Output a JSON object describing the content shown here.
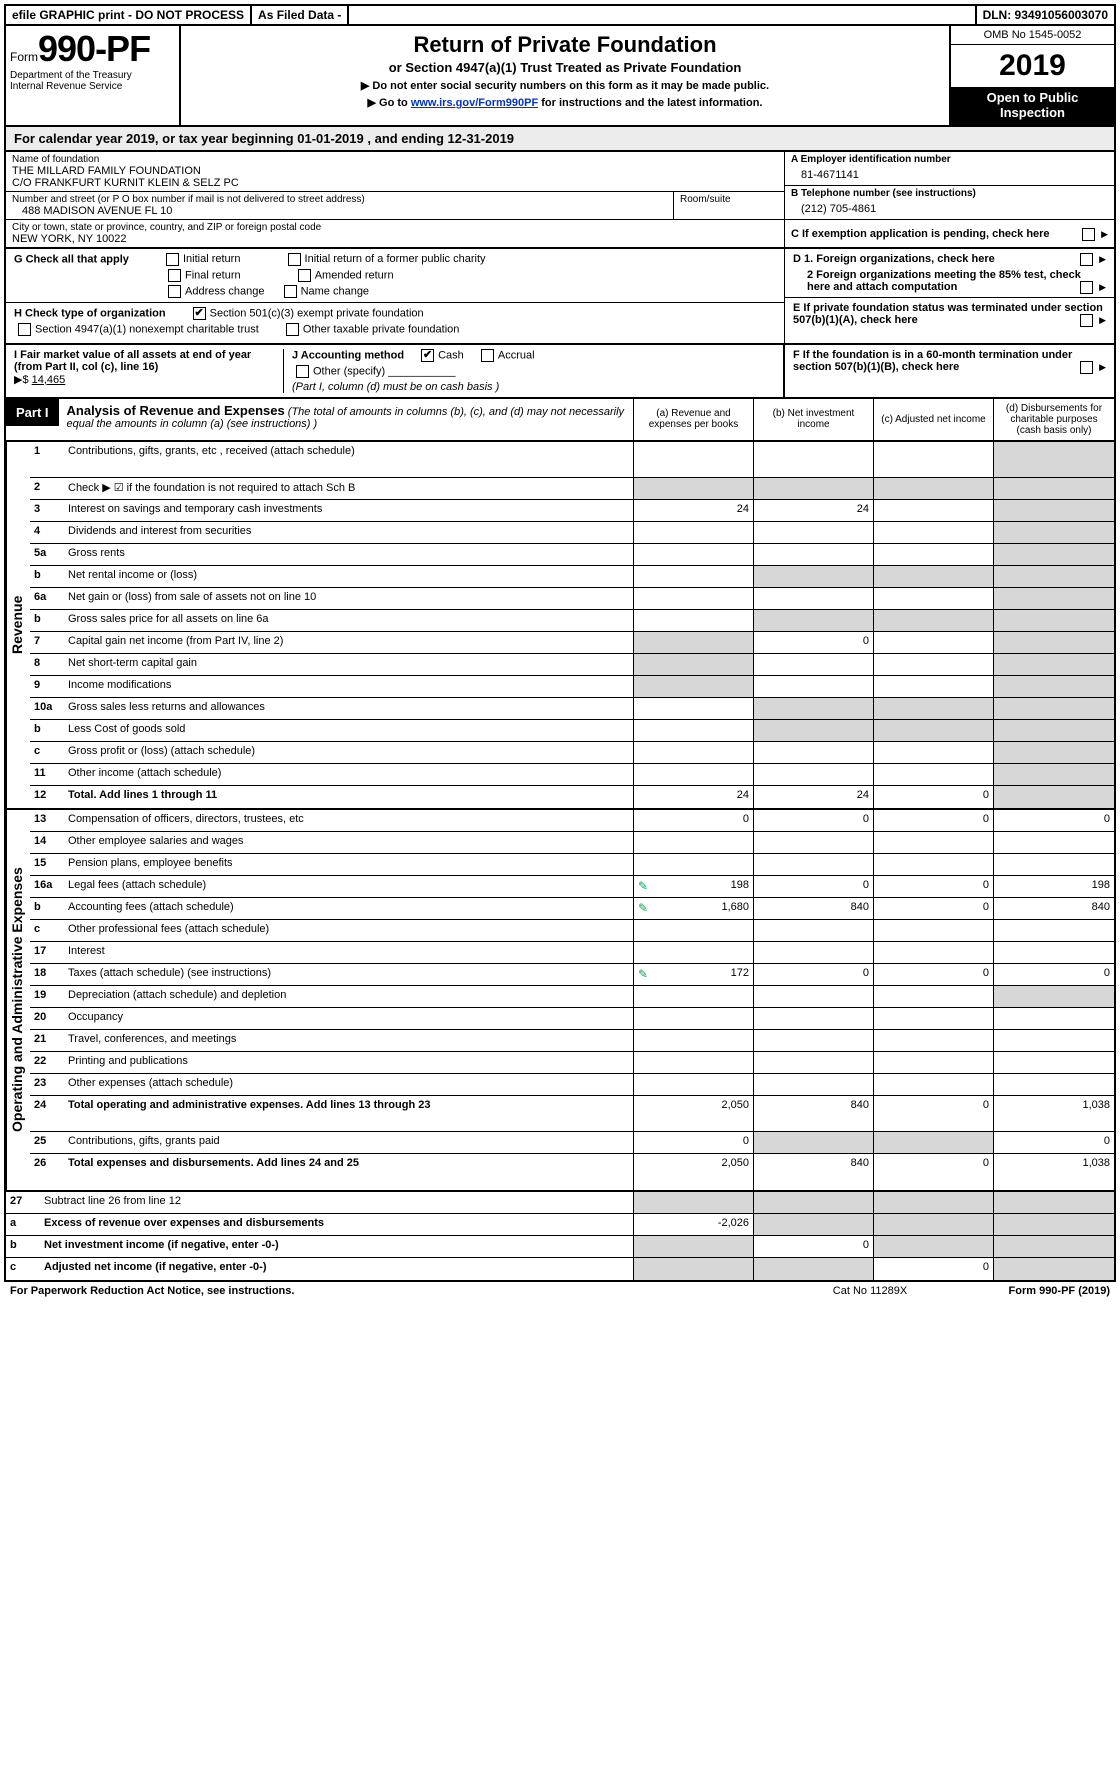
{
  "topbar": {
    "efile": "efile GRAPHIC print - DO NOT PROCESS",
    "asfiled": "As Filed Data -",
    "dln": "DLN: 93491056003070"
  },
  "header": {
    "form_prefix": "Form",
    "form_number": "990-PF",
    "dept": "Department of the Treasury",
    "irs": "Internal Revenue Service",
    "title": "Return of Private Foundation",
    "subtitle": "or Section 4947(a)(1) Trust Treated as Private Foundation",
    "instr1": "▶ Do not enter social security numbers on this form as it may be made public.",
    "instr2_pre": "▶ Go to ",
    "instr2_link": "www.irs.gov/Form990PF",
    "instr2_post": " for instructions and the latest information.",
    "omb": "OMB No 1545-0052",
    "tax_year": "2019",
    "open_pub": "Open to Public Inspection"
  },
  "calyear": {
    "text_pre": "For calendar year 2019, or tax year beginning ",
    "begin": "01-01-2019",
    "mid": " , and ending ",
    "end": "12-31-2019"
  },
  "info": {
    "name_lbl": "Name of foundation",
    "name1": "THE MILLARD FAMILY FOUNDATION",
    "name2": "C/O FRANKFURT KURNIT KLEIN & SELZ PC",
    "addr_lbl": "Number and street (or P O box number if mail is not delivered to street address)",
    "addr": "488 MADISON AVENUE FL 10",
    "room_lbl": "Room/suite",
    "city_lbl": "City or town, state or province, country, and ZIP or foreign postal code",
    "city": "NEW YORK, NY  10022",
    "A_lbl": "A Employer identification number",
    "A_val": "81-4671141",
    "B_lbl": "B Telephone number (see instructions)",
    "B_val": "(212) 705-4861",
    "C_lbl": "C If exemption application is pending, check here"
  },
  "G": {
    "lbl": "G Check all that apply",
    "opts": [
      "Initial return",
      "Final return",
      "Address change",
      "Initial return of a former public charity",
      "Amended return",
      "Name change"
    ]
  },
  "H": {
    "lbl": "H Check type of organization",
    "opt1": "Section 501(c)(3) exempt private foundation",
    "opt2": "Section 4947(a)(1) nonexempt charitable trust",
    "opt3": "Other taxable private foundation"
  },
  "I": {
    "lbl": "I Fair market value of all assets at end of year (from Part II, col (c), line 16)",
    "arrow": "▶$",
    "val": "14,465"
  },
  "J": {
    "lbl": "J Accounting method",
    "cash": "Cash",
    "accrual": "Accrual",
    "other": "Other (specify)",
    "note": "(Part I, column (d) must be on cash basis )"
  },
  "D": {
    "d1": "D 1. Foreign organizations, check here",
    "d2": "2 Foreign organizations meeting the 85% test, check here and attach computation"
  },
  "E": "E  If private foundation status was terminated under section 507(b)(1)(A), check here",
  "F": "F  If the foundation is in a 60-month termination under section 507(b)(1)(B), check here",
  "part1": {
    "tab": "Part I",
    "title": "Analysis of Revenue and Expenses",
    "note": "(The total of amounts in columns (b), (c), and (d) may not necessarily equal the amounts in column (a) (see instructions) )",
    "col_a": "(a) Revenue and expenses per books",
    "col_b": "(b) Net investment income",
    "col_c": "(c) Adjusted net income",
    "col_d": "(d) Disbursements for charitable purposes (cash basis only)"
  },
  "revenue_label": "Revenue",
  "expense_label": "Operating and Administrative Expenses",
  "rows": {
    "r1": {
      "n": "1",
      "l": "Contributions, gifts, grants, etc , received (attach schedule)"
    },
    "r2": {
      "n": "2",
      "l": "Check ▶ ☑ if the foundation is not required to attach Sch B"
    },
    "r3": {
      "n": "3",
      "l": "Interest on savings and temporary cash investments",
      "a": "24",
      "b": "24"
    },
    "r4": {
      "n": "4",
      "l": "Dividends and interest from securities"
    },
    "r5a": {
      "n": "5a",
      "l": "Gross rents"
    },
    "r5b": {
      "n": "b",
      "l": "Net rental income or (loss)"
    },
    "r6a": {
      "n": "6a",
      "l": "Net gain or (loss) from sale of assets not on line 10"
    },
    "r6b": {
      "n": "b",
      "l": "Gross sales price for all assets on line 6a"
    },
    "r7": {
      "n": "7",
      "l": "Capital gain net income (from Part IV, line 2)",
      "b": "0"
    },
    "r8": {
      "n": "8",
      "l": "Net short-term capital gain"
    },
    "r9": {
      "n": "9",
      "l": "Income modifications"
    },
    "r10a": {
      "n": "10a",
      "l": "Gross sales less returns and allowances"
    },
    "r10b": {
      "n": "b",
      "l": "Less  Cost of goods sold"
    },
    "r10c": {
      "n": "c",
      "l": "Gross profit or (loss) (attach schedule)"
    },
    "r11": {
      "n": "11",
      "l": "Other income (attach schedule)"
    },
    "r12": {
      "n": "12",
      "l": "Total. Add lines 1 through 11",
      "a": "24",
      "b": "24",
      "c": "0",
      "bold": true
    },
    "r13": {
      "n": "13",
      "l": "Compensation of officers, directors, trustees, etc",
      "a": "0",
      "b": "0",
      "c": "0",
      "d": "0"
    },
    "r14": {
      "n": "14",
      "l": "Other employee salaries and wages"
    },
    "r15": {
      "n": "15",
      "l": "Pension plans, employee benefits"
    },
    "r16a": {
      "n": "16a",
      "l": "Legal fees (attach schedule)",
      "ic": true,
      "a": "198",
      "b": "0",
      "c": "0",
      "d": "198"
    },
    "r16b": {
      "n": "b",
      "l": "Accounting fees (attach schedule)",
      "ic": true,
      "a": "1,680",
      "b": "840",
      "c": "0",
      "d": "840"
    },
    "r16c": {
      "n": "c",
      "l": "Other professional fees (attach schedule)"
    },
    "r17": {
      "n": "17",
      "l": "Interest"
    },
    "r18": {
      "n": "18",
      "l": "Taxes (attach schedule) (see instructions)",
      "ic": true,
      "a": "172",
      "b": "0",
      "c": "0",
      "d": "0"
    },
    "r19": {
      "n": "19",
      "l": "Depreciation (attach schedule) and depletion"
    },
    "r20": {
      "n": "20",
      "l": "Occupancy"
    },
    "r21": {
      "n": "21",
      "l": "Travel, conferences, and meetings"
    },
    "r22": {
      "n": "22",
      "l": "Printing and publications"
    },
    "r23": {
      "n": "23",
      "l": "Other expenses (attach schedule)"
    },
    "r24": {
      "n": "24",
      "l": "Total operating and administrative expenses. Add lines 13 through 23",
      "a": "2,050",
      "b": "840",
      "c": "0",
      "d": "1,038",
      "bold": true
    },
    "r25": {
      "n": "25",
      "l": "Contributions, gifts, grants paid",
      "a": "0",
      "d": "0"
    },
    "r26": {
      "n": "26",
      "l": "Total expenses and disbursements. Add lines 24 and 25",
      "a": "2,050",
      "b": "840",
      "c": "0",
      "d": "1,038",
      "bold": true
    },
    "r27": {
      "n": "27",
      "l": "Subtract line 26 from line 12"
    },
    "r27a": {
      "n": "a",
      "l": "Excess of revenue over expenses and disbursements",
      "a": "-2,026",
      "bold": true
    },
    "r27b": {
      "n": "b",
      "l": "Net investment income (if negative, enter -0-)",
      "b": "0",
      "bold": true
    },
    "r27c": {
      "n": "c",
      "l": "Adjusted net income (if negative, enter -0-)",
      "c": "0",
      "bold": true
    }
  },
  "footer": {
    "left": "For Paperwork Reduction Act Notice, see instructions.",
    "mid": "Cat No 11289X",
    "right": "Form 990-PF (2019)"
  },
  "style": {
    "gray": "#d7d7d7",
    "link": "#0033cc",
    "icon_color": "#0a7a3a"
  }
}
